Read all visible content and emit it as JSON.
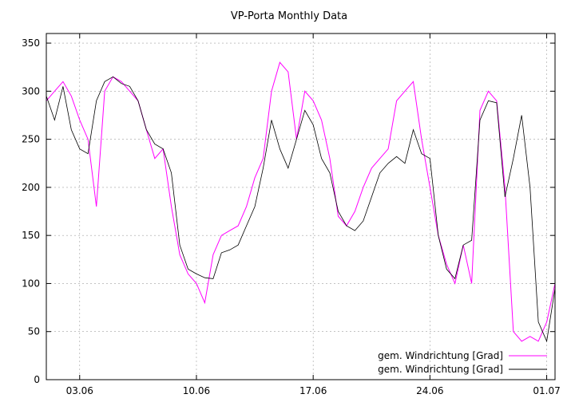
{
  "chart_data": {
    "type": "line",
    "title": "VP-Porta Monthly Data",
    "xlabel": "",
    "ylabel": "",
    "xlim": [
      0,
      30.5
    ],
    "ylim": [
      0,
      360
    ],
    "y_ticks": [
      0,
      50,
      100,
      150,
      200,
      250,
      300,
      350
    ],
    "x_ticks": [
      {
        "label": "03.06",
        "value": 2
      },
      {
        "label": "10.06",
        "value": 9
      },
      {
        "label": "17.06",
        "value": 16
      },
      {
        "label": "24.06",
        "value": 23
      },
      {
        "label": "01.07",
        "value": 30
      }
    ],
    "grid": true,
    "legend_position": "bottom-right",
    "series": [
      {
        "name": "gem. Windrichtung [Grad]",
        "color": "#ff00ff",
        "style": "raw",
        "x": [
          0.0,
          0.5,
          1.0,
          1.5,
          2.0,
          2.5,
          3.0,
          3.5,
          4.0,
          4.5,
          5.0,
          5.5,
          6.0,
          6.5,
          7.0,
          7.5,
          8.0,
          8.5,
          9.0,
          9.5,
          10.0,
          10.5,
          11.0,
          11.5,
          12.0,
          12.5,
          13.0,
          13.5,
          14.0,
          14.5,
          15.0,
          15.5,
          16.0,
          16.5,
          17.0,
          17.5,
          18.0,
          18.5,
          19.0,
          19.5,
          20.0,
          20.5,
          21.0,
          21.5,
          22.0,
          22.5,
          23.0,
          23.5,
          24.0,
          24.5,
          25.0,
          25.5,
          26.0,
          26.5,
          27.0,
          27.5,
          28.0,
          28.5,
          29.0,
          29.5,
          30.0,
          30.5
        ],
        "values": [
          290,
          300,
          310,
          295,
          270,
          250,
          180,
          300,
          315,
          310,
          300,
          290,
          260,
          230,
          240,
          180,
          130,
          110,
          100,
          80,
          130,
          150,
          155,
          160,
          180,
          210,
          230,
          300,
          330,
          320,
          250,
          300,
          290,
          270,
          230,
          170,
          160,
          175,
          200,
          220,
          230,
          240,
          290,
          300,
          310,
          250,
          200,
          150,
          120,
          100,
          140,
          100,
          280,
          300,
          290,
          200,
          50,
          40,
          45,
          40,
          60,
          100
        ]
      },
      {
        "name": "gem. Windrichtung [Grad]",
        "color": "#000000",
        "style": "smoothed",
        "x": [
          0.0,
          0.5,
          1.0,
          1.5,
          2.0,
          2.5,
          3.0,
          3.5,
          4.0,
          4.5,
          5.0,
          5.5,
          6.0,
          6.5,
          7.0,
          7.5,
          8.0,
          8.5,
          9.0,
          9.5,
          10.0,
          10.5,
          11.0,
          11.5,
          12.0,
          12.5,
          13.0,
          13.5,
          14.0,
          14.5,
          15.0,
          15.5,
          16.0,
          16.5,
          17.0,
          17.5,
          18.0,
          18.5,
          19.0,
          19.5,
          20.0,
          20.5,
          21.0,
          21.5,
          22.0,
          22.5,
          23.0,
          23.5,
          24.0,
          24.5,
          25.0,
          25.5,
          26.0,
          26.5,
          27.0,
          27.5,
          28.0,
          28.5,
          29.0,
          29.5,
          30.0,
          30.5
        ],
        "values": [
          295,
          270,
          305,
          260,
          240,
          235,
          290,
          310,
          315,
          308,
          305,
          290,
          260,
          245,
          240,
          215,
          140,
          115,
          110,
          106,
          105,
          132,
          135,
          140,
          160,
          180,
          220,
          270,
          240,
          220,
          250,
          280,
          265,
          230,
          215,
          175,
          160,
          155,
          165,
          190,
          215,
          225,
          232,
          225,
          260,
          235,
          230,
          150,
          115,
          105,
          140,
          145,
          270,
          290,
          288,
          190,
          230,
          275,
          200,
          60,
          40,
          95
        ]
      }
    ]
  }
}
